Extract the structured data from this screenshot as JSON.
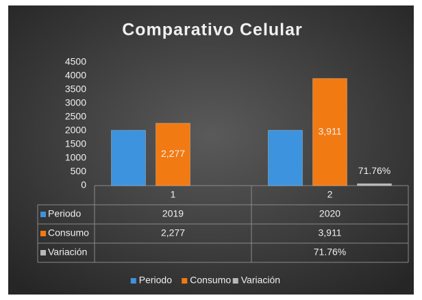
{
  "chart_data": {
    "type": "bar",
    "title": "Comparativo Celular",
    "categories": [
      "1",
      "2"
    ],
    "series": [
      {
        "name": "Periodo",
        "color": "#3d93dd",
        "values": [
          2019,
          2020
        ]
      },
      {
        "name": "Consumo",
        "color": "#f27a12",
        "values": [
          2277,
          3911
        ],
        "value_labels": [
          "2,277",
          "3,911"
        ]
      },
      {
        "name": "Variación",
        "color": "#b8b8b8",
        "values": [
          null,
          71.76
        ],
        "value_labels": [
          null,
          "71.76%"
        ]
      }
    ],
    "ylim": [
      0,
      4500
    ],
    "yticks": [
      0,
      500,
      1000,
      1500,
      2000,
      2500,
      3000,
      3500,
      4000,
      4500
    ],
    "grid": false,
    "legend": "bottom"
  }
}
